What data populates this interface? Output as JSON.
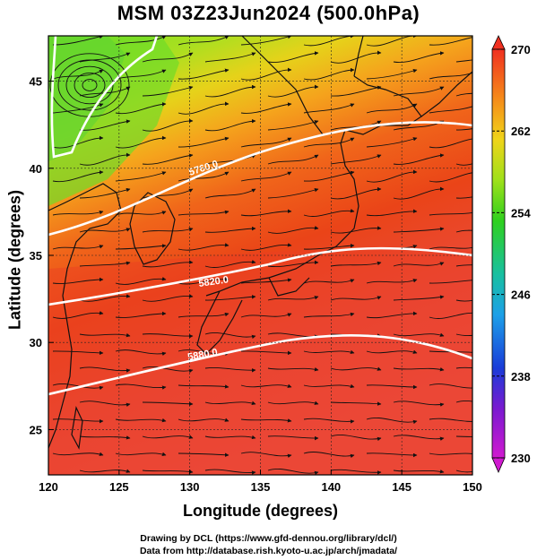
{
  "title": "MSM 03Z23Jun2024 (500.0hPa)",
  "map": {
    "xlabel": "Longitude (degrees)",
    "ylabel": "Latitude  (degrees)",
    "lon_range": [
      120,
      150
    ],
    "lat_range": [
      22.4,
      47.6
    ],
    "lon_ticks": [
      "120",
      "125",
      "130",
      "135",
      "140",
      "145",
      "150"
    ],
    "lat_ticks": [
      "25",
      "30",
      "35",
      "40",
      "45"
    ],
    "contour_labels": [
      "5760.0",
      "5820.0",
      "5880.0"
    ],
    "field": "temperature (K)",
    "overlay": "streamlines"
  },
  "colorbar": {
    "min": 230,
    "max": 270,
    "ticks": [
      "270",
      "262",
      "254",
      "246",
      "238",
      "230"
    ]
  },
  "credits": {
    "line1": "Drawing by DCL (https://www.gfd-dennou.org/library/dcl/)",
    "line2": "Data from http://database.rish.kyoto-u.ac.jp/arch/jmadata/"
  }
}
